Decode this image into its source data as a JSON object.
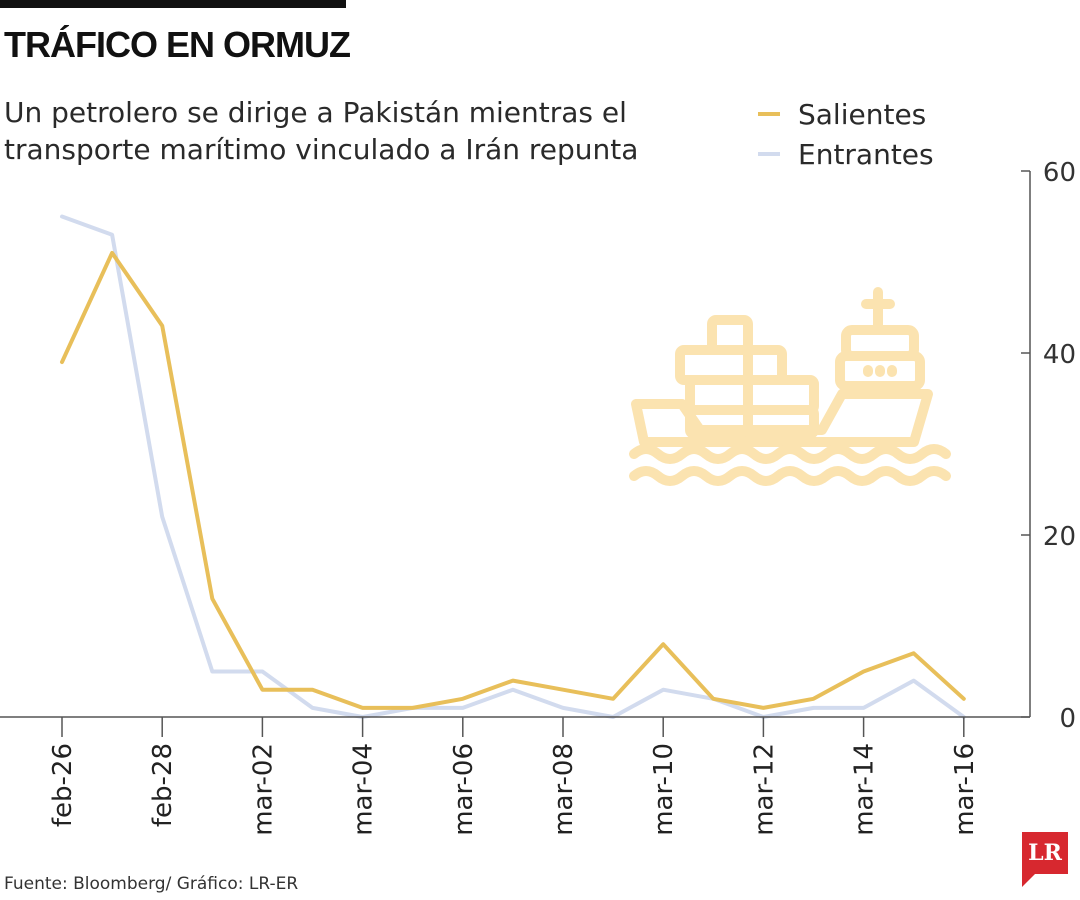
{
  "header": {
    "title": "TRÁFICO EN ORMUZ",
    "subtitle": "Un petrolero se dirige a Pakistán mientras el transporte marítimo vinculado a Irán repunta"
  },
  "footer": {
    "source": "Fuente: Bloomberg/ Gráfico: LR-ER"
  },
  "logo": {
    "text": "LR",
    "color": "#d7282f"
  },
  "illustration": {
    "icon": "cargo-ship-icon",
    "color": "#fbe3b0"
  },
  "chart_data": {
    "type": "line",
    "title": "TRÁFICO EN ORMUZ",
    "xlabel": "",
    "ylabel": "",
    "ylim": [
      0,
      60
    ],
    "yticks": [
      0,
      20,
      40,
      60
    ],
    "y_axis_side": "right",
    "x": [
      "feb-26",
      "feb-27",
      "feb-28",
      "feb-29",
      "mar-02",
      "mar-03",
      "mar-04",
      "mar-05",
      "mar-06",
      "mar-07",
      "mar-08",
      "mar-09",
      "mar-10",
      "mar-11",
      "mar-12",
      "mar-13",
      "mar-14",
      "mar-15",
      "mar-16"
    ],
    "xtick_labels": [
      "feb-26",
      "feb-28",
      "mar-02",
      "mar-04",
      "mar-06",
      "mar-08",
      "mar-10",
      "mar-12",
      "mar-14",
      "mar-16"
    ],
    "legend_position": "top-right",
    "series": [
      {
        "name": "Salientes",
        "color": "#e8bf5a",
        "values": [
          39,
          51,
          43,
          13,
          3,
          3,
          1,
          1,
          2,
          4,
          3,
          2,
          8,
          2,
          1,
          2,
          5,
          7,
          2
        ]
      },
      {
        "name": "Entrantes",
        "color": "#d2dbee",
        "values": [
          55,
          53,
          22,
          5,
          5,
          1,
          0,
          1,
          1,
          3,
          1,
          0,
          3,
          2,
          0,
          1,
          1,
          4,
          0
        ]
      }
    ]
  }
}
